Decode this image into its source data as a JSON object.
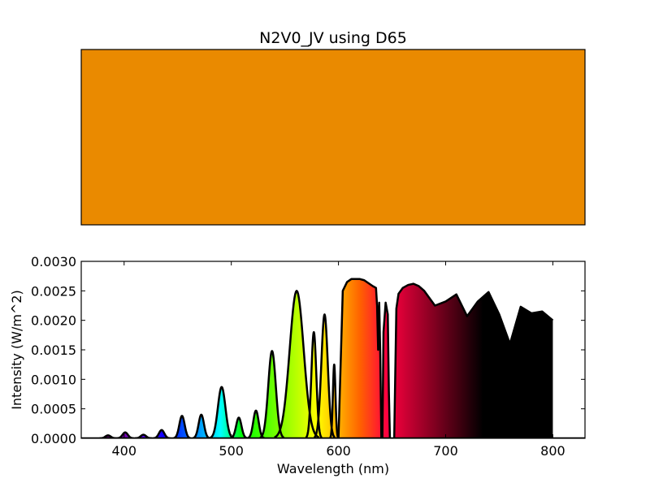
{
  "chart_data": [
    {
      "type": "color-swatch",
      "title": "N2V0_JV using D65",
      "swatch_color": "#ea8a00"
    },
    {
      "type": "area",
      "title": "",
      "xlabel": "Wavelength (nm)",
      "ylabel": "Intensity (W/m^2)",
      "xlim": [
        360,
        830
      ],
      "ylim": [
        0,
        0.003
      ],
      "xticks": [
        400,
        500,
        600,
        700,
        800
      ],
      "xtick_labels": [
        "400",
        "500",
        "600",
        "700",
        "800"
      ],
      "yticks": [
        0,
        0.0005,
        0.001,
        0.0015,
        0.002,
        0.0025,
        0.003
      ],
      "ytick_labels": [
        "0.0000",
        "0.0005",
        "0.0010",
        "0.0015",
        "0.0020",
        "0.0025",
        "0.0030"
      ],
      "fill": "wavelength-spectrum colors",
      "line_color": "#000000",
      "peaks": [
        {
          "center": 385,
          "height": 5e-05,
          "width": 2.5
        },
        {
          "center": 401,
          "height": 0.0001,
          "width": 2.5
        },
        {
          "center": 418,
          "height": 6e-05,
          "width": 2.5
        },
        {
          "center": 435,
          "height": 0.00014,
          "width": 2.5
        },
        {
          "center": 454,
          "height": 0.00038,
          "width": 2.5
        },
        {
          "center": 472,
          "height": 0.0004,
          "width": 2.5
        },
        {
          "center": 491,
          "height": 0.00087,
          "width": 3.5
        },
        {
          "center": 507,
          "height": 0.00035,
          "width": 2.5
        },
        {
          "center": 523,
          "height": 0.00047,
          "width": 2.5
        },
        {
          "center": 538,
          "height": 0.00148,
          "width": 3.5
        },
        {
          "center": 561,
          "height": 0.0025,
          "width": 6.5
        },
        {
          "center": 577,
          "height": 0.0018,
          "width": 2.3
        },
        {
          "center": 587,
          "height": 0.0021,
          "width": 3.0
        },
        {
          "center": 596,
          "height": 0.00125,
          "width": 1.2
        }
      ],
      "series": [
        {
          "name": "broadband-1",
          "x": [
            600,
            604,
            608,
            612,
            616,
            620,
            624,
            628,
            632,
            635,
            636,
            637,
            638,
            639,
            640
          ],
          "values": [
            0.0,
            0.0025,
            0.00265,
            0.0027,
            0.0027,
            0.0027,
            0.00268,
            0.00263,
            0.00258,
            0.00255,
            0.00225,
            0.0015,
            0.0023,
            0.0014,
            0.0
          ]
        },
        {
          "name": "broadband-2",
          "x": [
            641,
            642,
            644,
            646,
            647,
            648
          ],
          "values": [
            0.0,
            0.0018,
            0.0023,
            0.0021,
            0.0008,
            0.0
          ]
        },
        {
          "name": "broadband-3",
          "x": [
            652,
            654,
            656,
            660,
            665,
            670,
            675,
            680,
            690,
            700,
            710,
            720,
            730,
            740,
            750,
            760,
            770,
            780,
            790,
            800
          ],
          "values": [
            0.0,
            0.0022,
            0.00245,
            0.00255,
            0.0026,
            0.00262,
            0.00258,
            0.0025,
            0.00225,
            0.00232,
            0.00244,
            0.00207,
            0.00232,
            0.00248,
            0.0021,
            0.0016,
            0.00223,
            0.00212,
            0.00215,
            0.002
          ]
        }
      ]
    }
  ]
}
